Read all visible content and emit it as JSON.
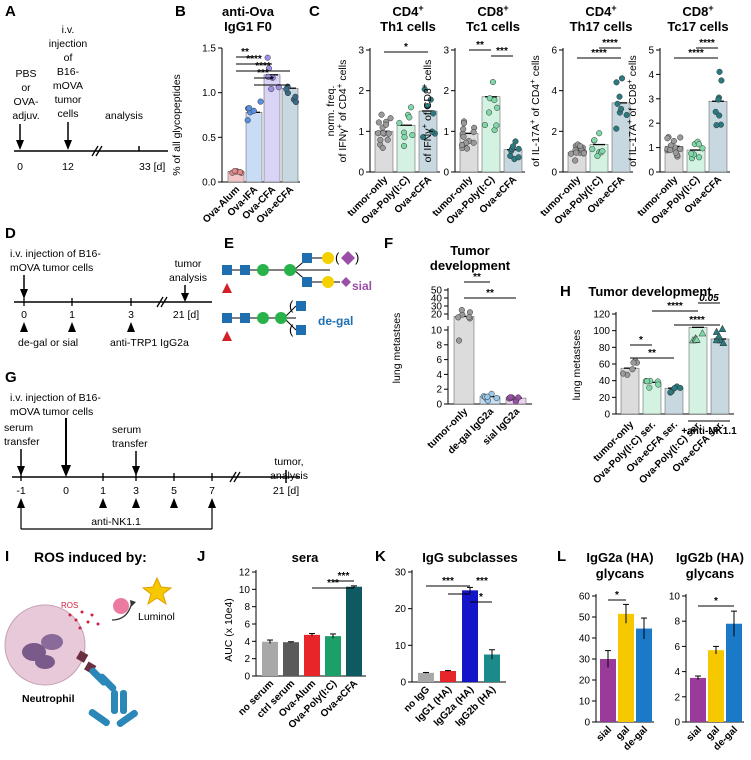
{
  "panel_letters": [
    "A",
    "B",
    "C",
    "D",
    "E",
    "F",
    "G",
    "H",
    "I",
    "J",
    "K",
    "L"
  ],
  "colors": {
    "alum": "#e0888c",
    "ifa": "#5b8fe0",
    "cfa": "#9b8fe6",
    "ecfa": "#3a6a86",
    "green": "#7fd8a8",
    "teal": "#2a7a80",
    "gray": "#9a9a9a",
    "blue_sq": "#1f6fb0",
    "green_circ": "#28b34a",
    "yellow": "#f5d000",
    "purple": "#9b4ea8",
    "red": "#d0202a",
    "pink": "#ea7aa0",
    "light_blue": "#9ac8e8"
  },
  "panelA": {
    "labels": [
      "PBS",
      "or",
      "OVA-",
      "adjuv."
    ],
    "injection": [
      "i.v.",
      "injection",
      "of",
      "B16-",
      "mOVA",
      "tumor",
      "cells"
    ],
    "analysis": "analysis",
    "ticks": [
      "0",
      "12",
      "33 [d]"
    ]
  },
  "panelB": {
    "title": "anti-Ova",
    "subtitle": "IgG1 F0",
    "chart_data": {
      "type": "bar",
      "ylabel": "% of all glycopeptides",
      "ylim": [
        0,
        1.5
      ],
      "yticks": [
        "0.0",
        "0.5",
        "1.0",
        "1.5"
      ],
      "categories": [
        "Ova-Alum",
        "Ova-IFA",
        "Ova-CFA",
        "Ova-eCFA"
      ],
      "values": [
        0.12,
        0.78,
        1.2,
        1.05
      ],
      "sig": [
        "**",
        "****",
        "****",
        "***",
        "*"
      ]
    }
  },
  "panelC": {
    "charts": [
      {
        "title_main": "CD4",
        "title_sup": "+",
        "subtitle": "Th1 cells",
        "ylabel_pre": "norm. freq.",
        "ylabel": "of IFNγ",
        "ylabel_sup": "+",
        "ylabel_post": " of CD4",
        "ylabel_sup2": "+",
        "ylabel_end": " cells",
        "type": "bar",
        "ylim": [
          0,
          3
        ],
        "yticks": [
          "0",
          "1",
          "2",
          "3"
        ],
        "categories": [
          "tumor-only",
          "Ova-Poly(I:C)",
          "Ova-eCFA"
        ],
        "values": [
          1.0,
          1.15,
          1.5
        ],
        "sig": [
          "*"
        ]
      },
      {
        "title_main": "CD8",
        "title_sup": "+",
        "subtitle": "Tc1 cells",
        "ylabel": "of IFNγ",
        "ylabel_sup": "+",
        "ylabel_post": " of CD8",
        "ylabel_sup2": "+",
        "ylabel_end": " cells",
        "type": "bar",
        "ylim": [
          0,
          3
        ],
        "yticks": [
          "0",
          "1",
          "2",
          "3"
        ],
        "categories": [
          "tumor-only",
          "Ova-Poly(I:C)",
          "Ova-eCFA"
        ],
        "values": [
          0.95,
          1.85,
          0.55
        ],
        "sig": [
          "**",
          "***"
        ]
      },
      {
        "title_main": "CD4",
        "title_sup": "+",
        "subtitle": "Th17 cells",
        "ylabel": "of IL-17A",
        "ylabel_sup": "+",
        "ylabel_post": " of CD4",
        "ylabel_sup2": "+",
        "ylabel_end": " cells",
        "type": "bar",
        "ylim": [
          0,
          6
        ],
        "yticks": [
          "0",
          "2",
          "4",
          "6"
        ],
        "categories": [
          "tumor-only",
          "Ova-Poly(I:C)",
          "Ova-eCFA"
        ],
        "values": [
          0.95,
          1.35,
          3.4
        ],
        "sig": [
          "****",
          "****"
        ]
      },
      {
        "title_main": "CD8",
        "title_sup": "+",
        "subtitle": "Tc17 cells",
        "ylabel": "of IL-17A",
        "ylabel_sup": "+",
        "ylabel_post": " of CD8",
        "ylabel_sup2": "+",
        "ylabel_end": " cells",
        "type": "bar",
        "ylim": [
          0,
          5
        ],
        "yticks": [
          "0",
          "1",
          "2",
          "3",
          "4",
          "5"
        ],
        "categories": [
          "tumor-only",
          "Ova-Poly(I:C)",
          "Ova-eCFA"
        ],
        "values": [
          1.05,
          0.9,
          2.9
        ],
        "sig": [
          "****",
          "****"
        ]
      }
    ]
  },
  "panelD": {
    "text1": "i.v. injection of B16-",
    "text2": "mOVA tumor cells",
    "tumor": "tumor",
    "analysis": "analysis",
    "ticks": [
      "0",
      "1",
      "3",
      "21 [d]"
    ],
    "bottom_a": "de-gal or sial",
    "bottom_b": "anti-TRP1 IgG2a"
  },
  "panelE": {
    "sial": "sial",
    "degal": "de-gal"
  },
  "panelF": {
    "title1": "Tumor",
    "title2": "development",
    "chart_data": {
      "type": "bar",
      "ylabel": "lung metastses",
      "ylim": [
        0,
        50
      ],
      "yticks": [
        "0",
        "2",
        "4",
        "6",
        "8",
        "10",
        "20",
        "30",
        "40",
        "50"
      ],
      "categories": [
        "tumor-only",
        "de-gal IgG2a",
        "sial IgG2a"
      ],
      "values": [
        17,
        1.0,
        0.8
      ],
      "sig": [
        "**",
        "**"
      ]
    }
  },
  "panelG": {
    "text1": "i.v. injection of B16-",
    "text2": "mOVA tumor cells",
    "serum1a": "serum",
    "serum1b": "transfer",
    "serum2a": "serum",
    "serum2b": "transfer",
    "tumor": "tumor,",
    "analysis": "analysis",
    "ticks": [
      "-1",
      "0",
      "1",
      "3",
      "5",
      "7",
      "21 [d]"
    ],
    "nk": "anti-NK1.1"
  },
  "panelH": {
    "title": "Tumor development",
    "chart_data": {
      "type": "bar",
      "ylabel": "lung metastses",
      "ylim": [
        0,
        120
      ],
      "yticks": [
        "0",
        "20",
        "40",
        "60",
        "80",
        "100",
        "120"
      ],
      "categories": [
        "tumor-only",
        "Ova-Poly(I:C) ser.",
        "Ova-eCFA ser.",
        "Ova-Poly(I:C) ser.",
        "Ova-eCFA ser."
      ],
      "values": [
        55,
        38,
        31,
        104,
        90
      ],
      "group_label": "+anti-NK1.1",
      "sig": [
        "*",
        "**",
        "****",
        "****",
        "0.05"
      ]
    }
  },
  "panelI": {
    "title": "ROS induced by:",
    "ros": "ROS",
    "luminol": "Luminol",
    "neutrophil": "Neutrophil"
  },
  "panelJ": {
    "title": "sera",
    "chart_data": {
      "type": "bar",
      "ylabel": "AUC (x 10e4)",
      "ylim": [
        0,
        12
      ],
      "yticks": [
        "0",
        "2",
        "4",
        "6",
        "8",
        "10",
        "12"
      ],
      "categories": [
        "no serum",
        "ctrl serum",
        "Ova-Alum",
        "Ova-Poly(I:C)",
        "Ova-eCFA"
      ],
      "values": [
        3.95,
        3.9,
        4.75,
        4.6,
        10.3
      ],
      "errors": [
        0.2,
        0.05,
        0.15,
        0.25,
        0.1
      ],
      "sig": [
        "***",
        "***"
      ]
    }
  },
  "panelK": {
    "title": "IgG subclasses",
    "chart_data": {
      "type": "bar",
      "ylim": [
        0,
        30
      ],
      "yticks": [
        "0",
        "10",
        "20",
        "30"
      ],
      "categories": [
        "no IgG",
        "IgG1 (HA)",
        "IgG2a (HA)",
        "IgG2b (HA)"
      ],
      "values": [
        2.5,
        3.0,
        25,
        7.5
      ],
      "errors": [
        0.1,
        0.1,
        0.8,
        1.3
      ],
      "sig": [
        "***",
        "***",
        "*"
      ]
    }
  },
  "panelL": {
    "charts": [
      {
        "title1": "IgG2a (HA)",
        "title2": "glycans",
        "type": "bar",
        "ylim": [
          0,
          60
        ],
        "yticks": [
          "0",
          "10",
          "20",
          "30",
          "40",
          "50",
          "60"
        ],
        "categories": [
          "sial",
          "gal",
          "de-gal"
        ],
        "values": [
          30,
          51.5,
          44.5
        ],
        "errors": [
          4,
          4.5,
          5
        ],
        "sig": [
          "*"
        ]
      },
      {
        "title1": "IgG2b (HA)",
        "title2": "glycans",
        "type": "bar",
        "ylim": [
          0,
          10
        ],
        "yticks": [
          "0",
          "2",
          "4",
          "6",
          "8",
          "10"
        ],
        "categories": [
          "sial",
          "gal",
          "de-gal"
        ],
        "values": [
          3.5,
          5.7,
          7.8
        ],
        "errors": [
          0.15,
          0.3,
          1.0
        ],
        "sig": [
          "*"
        ]
      }
    ]
  }
}
